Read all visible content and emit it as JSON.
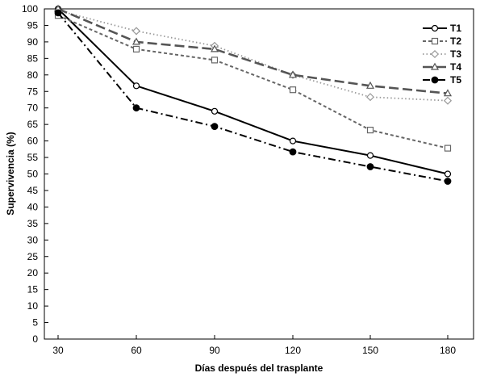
{
  "chart_data": {
    "type": "line",
    "xlabel": "Días después del trasplante",
    "ylabel": "Supervivencia (%)",
    "x": [
      30,
      60,
      90,
      120,
      150,
      180
    ],
    "xticks": [
      "30",
      "60",
      "90",
      "120",
      "150",
      "180"
    ],
    "ylim": [
      0,
      100
    ],
    "yticks": [
      "0",
      "5",
      "10",
      "15",
      "20",
      "25",
      "30",
      "35",
      "40",
      "45",
      "50",
      "55",
      "60",
      "65",
      "70",
      "75",
      "80",
      "85",
      "90",
      "95",
      "100"
    ],
    "grid": false,
    "legend_position": "top-right",
    "series": [
      {
        "name": "T1",
        "values": [
          100,
          76.7,
          69,
          60,
          55.6,
          50
        ],
        "color": "#000000",
        "marker": "circle-open",
        "line": "solid"
      },
      {
        "name": "T2",
        "values": [
          98,
          87.8,
          84.5,
          75.5,
          63.3,
          57.8
        ],
        "color": "#666666",
        "marker": "square-open",
        "line": "dashed"
      },
      {
        "name": "T3",
        "values": [
          99.5,
          93.3,
          88.8,
          80,
          73.3,
          72.2
        ],
        "color": "#999999",
        "marker": "diamond-open",
        "line": "dotted"
      },
      {
        "name": "T4",
        "values": [
          100,
          90,
          87.8,
          80,
          76.7,
          74.4
        ],
        "color": "#555555",
        "marker": "triangle-open",
        "line": "longdash"
      },
      {
        "name": "T5",
        "values": [
          98.8,
          70,
          64.4,
          56.7,
          52.2,
          47.8
        ],
        "color": "#000000",
        "marker": "circle-filled",
        "line": "dashdot"
      }
    ]
  }
}
